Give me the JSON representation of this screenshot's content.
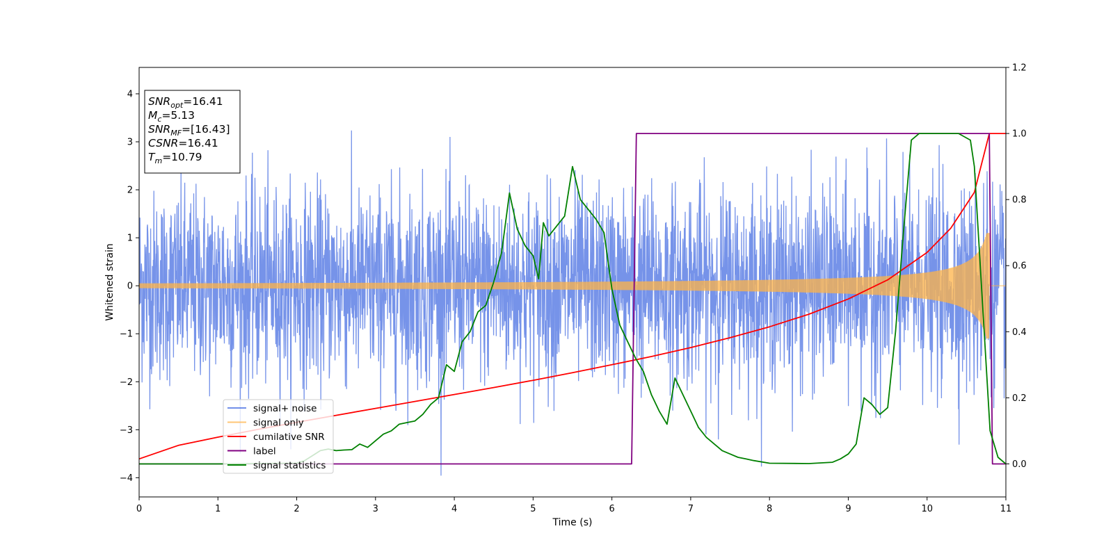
{
  "chart_data": {
    "type": "line",
    "xlabel": "Time (s)",
    "ylabel": "Whitened strain",
    "xlim": [
      0,
      11
    ],
    "ylim": [
      -4.4,
      4.55
    ],
    "y2lim": [
      -0.1,
      1.2
    ],
    "x_ticks": [
      0,
      1,
      2,
      3,
      4,
      5,
      6,
      7,
      8,
      9,
      10,
      11
    ],
    "y_ticks": [
      -4,
      -3,
      -2,
      -1,
      0,
      1,
      2,
      3,
      4
    ],
    "y2_ticks": [
      0.0,
      0.2,
      0.4,
      0.6,
      0.8,
      1.0,
      1.2
    ],
    "y2_tick_labels": [
      "0.0",
      "0.2",
      "0.4",
      "0.6",
      "0.8",
      "1.0",
      "1.2"
    ],
    "grid": false,
    "legend_position": "bottom-left",
    "annotation": {
      "lines": [
        {
          "base": "SNR",
          "sub": "opt",
          "rest": "=16.41"
        },
        {
          "base": "M",
          "sub": "c",
          "rest": "=5.13"
        },
        {
          "base": "SNR",
          "sub": "MF",
          "rest": "=[16.43]"
        },
        {
          "base": "CSNR",
          "sub": "",
          "rest": "=16.41"
        },
        {
          "base": "T",
          "sub": "m",
          "rest": "=10.79"
        }
      ]
    },
    "series": [
      {
        "name": "signal+ noise",
        "axis": "left",
        "color": "#4169e1",
        "kind": "noise_band",
        "noise_sigma": 1.0,
        "max_abs": 4.2
      },
      {
        "name": "signal only",
        "axis": "left",
        "color": "#ffb347",
        "kind": "chirp",
        "amplitude_start": 0.05,
        "amplitude_end": 1.1,
        "merger_time": 10.79
      },
      {
        "name": "cumilative SNR",
        "axis": "right",
        "color": "#ff0000",
        "x": [
          0,
          0.5,
          1,
          1.5,
          2,
          2.5,
          3,
          3.5,
          4,
          4.5,
          5,
          5.5,
          6,
          6.5,
          7,
          7.5,
          8,
          8.5,
          9,
          9.5,
          10,
          10.3,
          10.6,
          10.79,
          11
        ],
        "y": [
          0.015,
          0.056,
          0.081,
          0.104,
          0.126,
          0.147,
          0.168,
          0.189,
          0.21,
          0.231,
          0.253,
          0.276,
          0.3,
          0.325,
          0.352,
          0.382,
          0.415,
          0.453,
          0.499,
          0.557,
          0.64,
          0.713,
          0.822,
          1.0,
          1.0
        ]
      },
      {
        "name": "label",
        "axis": "right",
        "color": "#800080",
        "x": [
          0,
          6.25,
          6.31,
          10.79,
          10.83,
          11
        ],
        "y": [
          0,
          0,
          1,
          1,
          0,
          0
        ]
      },
      {
        "name": "signal statistics",
        "axis": "right",
        "color": "#008000",
        "x": [
          0,
          1,
          2,
          2.1,
          2.2,
          2.3,
          2.4,
          2.5,
          2.6,
          2.7,
          2.8,
          2.9,
          3.0,
          3.1,
          3.2,
          3.3,
          3.4,
          3.5,
          3.6,
          3.7,
          3.8,
          3.9,
          4.0,
          4.1,
          4.2,
          4.3,
          4.4,
          4.5,
          4.6,
          4.7,
          4.8,
          4.9,
          5.0,
          5.07,
          5.13,
          5.2,
          5.3,
          5.4,
          5.5,
          5.6,
          5.7,
          5.8,
          5.9,
          6.0,
          6.1,
          6.2,
          6.3,
          6.4,
          6.5,
          6.6,
          6.7,
          6.8,
          6.9,
          7.0,
          7.1,
          7.2,
          7.3,
          7.4,
          7.5,
          7.6,
          7.7,
          7.8,
          8.0,
          8.5,
          8.8,
          8.9,
          9.0,
          9.1,
          9.2,
          9.3,
          9.4,
          9.5,
          9.6,
          9.7,
          9.8,
          9.9,
          10.0,
          10.2,
          10.4,
          10.55,
          10.6,
          10.7,
          10.8,
          10.9,
          11.0
        ],
        "y": [
          0.0,
          0.0,
          0.002,
          0.01,
          0.025,
          0.04,
          0.045,
          0.04,
          0.042,
          0.043,
          0.06,
          0.05,
          0.07,
          0.09,
          0.1,
          0.12,
          0.125,
          0.13,
          0.15,
          0.18,
          0.2,
          0.3,
          0.28,
          0.37,
          0.4,
          0.46,
          0.48,
          0.55,
          0.64,
          0.82,
          0.71,
          0.66,
          0.63,
          0.56,
          0.73,
          0.69,
          0.72,
          0.75,
          0.9,
          0.8,
          0.77,
          0.74,
          0.7,
          0.53,
          0.42,
          0.37,
          0.32,
          0.28,
          0.21,
          0.16,
          0.12,
          0.26,
          0.21,
          0.16,
          0.11,
          0.08,
          0.06,
          0.04,
          0.03,
          0.02,
          0.015,
          0.01,
          0.002,
          0.001,
          0.005,
          0.015,
          0.03,
          0.06,
          0.2,
          0.18,
          0.15,
          0.17,
          0.4,
          0.7,
          0.98,
          1.0,
          1.0,
          1.0,
          1.0,
          0.98,
          0.9,
          0.5,
          0.1,
          0.02,
          0.0
        ]
      }
    ]
  }
}
